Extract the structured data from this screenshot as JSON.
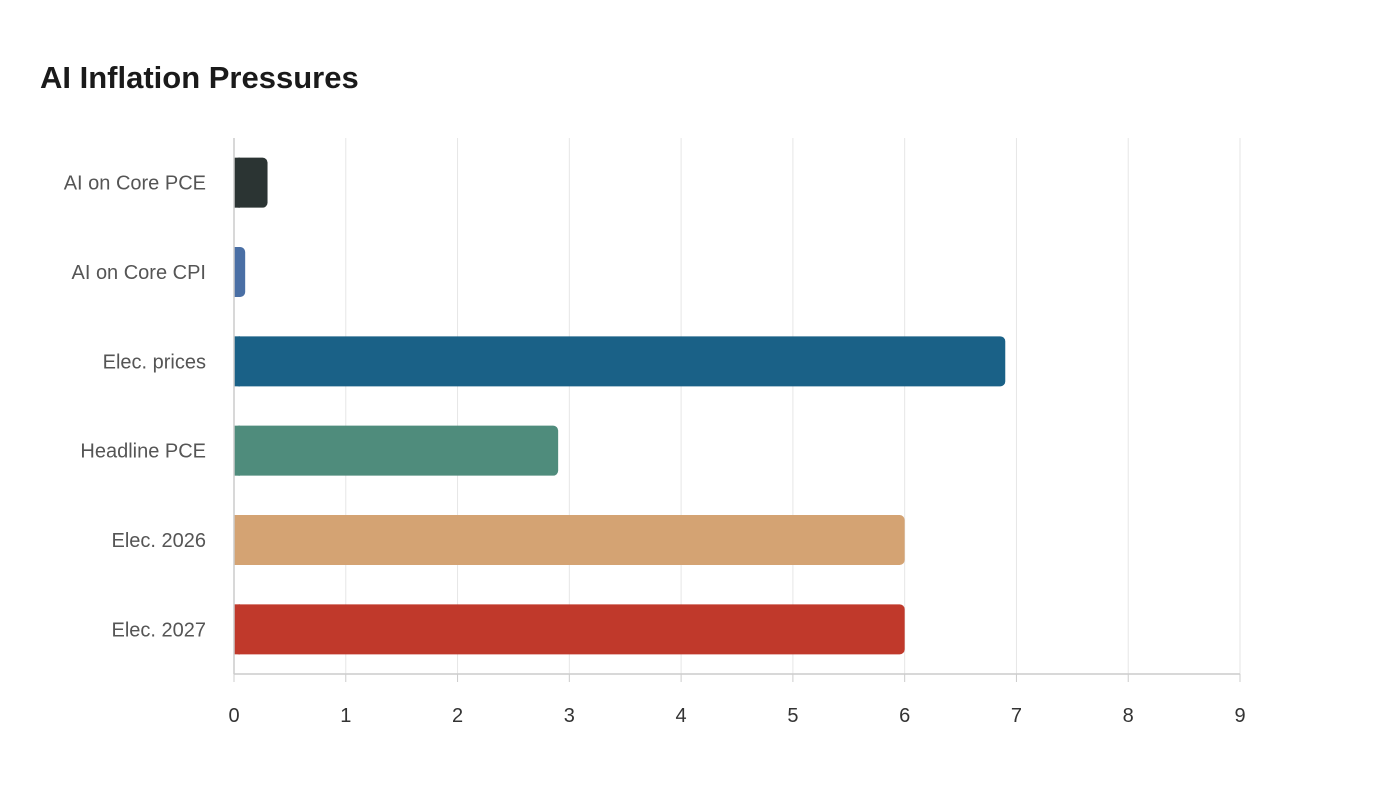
{
  "title": "AI Inflation Pressures",
  "chart_data": {
    "type": "bar",
    "orientation": "horizontal",
    "title": "AI Inflation Pressures",
    "xlabel": "",
    "ylabel": "",
    "categories": [
      "AI on Core PCE",
      "AI on Core CPI",
      "Elec. prices",
      "Headline PCE",
      "Elec. 2026",
      "Elec. 2027"
    ],
    "values": [
      0.3,
      0.1,
      6.9,
      2.9,
      6.0,
      6.0
    ],
    "colors": [
      "#2b3433",
      "#4a6fa5",
      "#1a6187",
      "#4f8c7c",
      "#d4a373",
      "#c0392b"
    ],
    "xlim": [
      0,
      9
    ],
    "xticks": [
      "0",
      "1",
      "2",
      "3",
      "4",
      "5",
      "6",
      "7",
      "8",
      "9"
    ],
    "grid": "vertical",
    "legend": "none"
  }
}
